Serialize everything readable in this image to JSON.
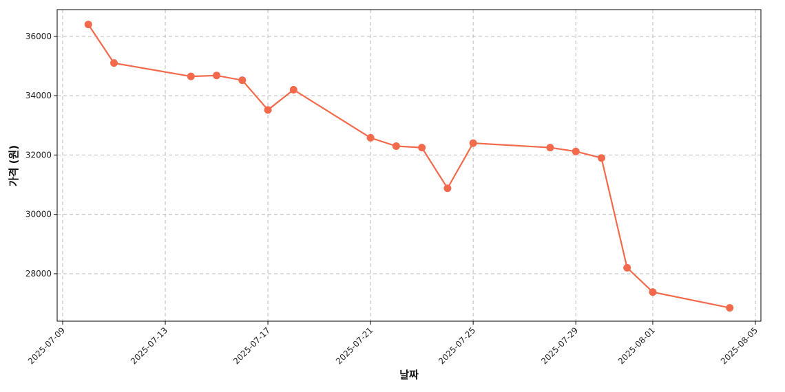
{
  "chart_data": {
    "type": "line",
    "title": "",
    "xlabel": "날짜",
    "ylabel": "가격 (원)",
    "grid": true,
    "line_color": "#f26a4b",
    "marker_color": "#f26a4b",
    "x": [
      "2025-07-10",
      "2025-07-11",
      "2025-07-14",
      "2025-07-15",
      "2025-07-16",
      "2025-07-17",
      "2025-07-18",
      "2025-07-21",
      "2025-07-22",
      "2025-07-23",
      "2025-07-24",
      "2025-07-25",
      "2025-07-28",
      "2025-07-29",
      "2025-07-30",
      "2025-07-31",
      "2025-08-01",
      "2025-08-04"
    ],
    "values": [
      36400,
      35100,
      34650,
      34680,
      34520,
      33520,
      34200,
      32580,
      32300,
      32250,
      30880,
      32400,
      32250,
      32120,
      31900,
      28200,
      27380,
      26850
    ],
    "x_ticks": [
      "2025-07-09",
      "2025-07-13",
      "2025-07-17",
      "2025-07-21",
      "2025-07-25",
      "2025-07-29",
      "2025-08-01",
      "2025-08-05"
    ],
    "y_ticks": [
      28000,
      30000,
      32000,
      34000,
      36000
    ],
    "xlim": [
      "2025-07-09",
      "2025-08-05"
    ],
    "ylim": [
      26400,
      36900
    ]
  }
}
